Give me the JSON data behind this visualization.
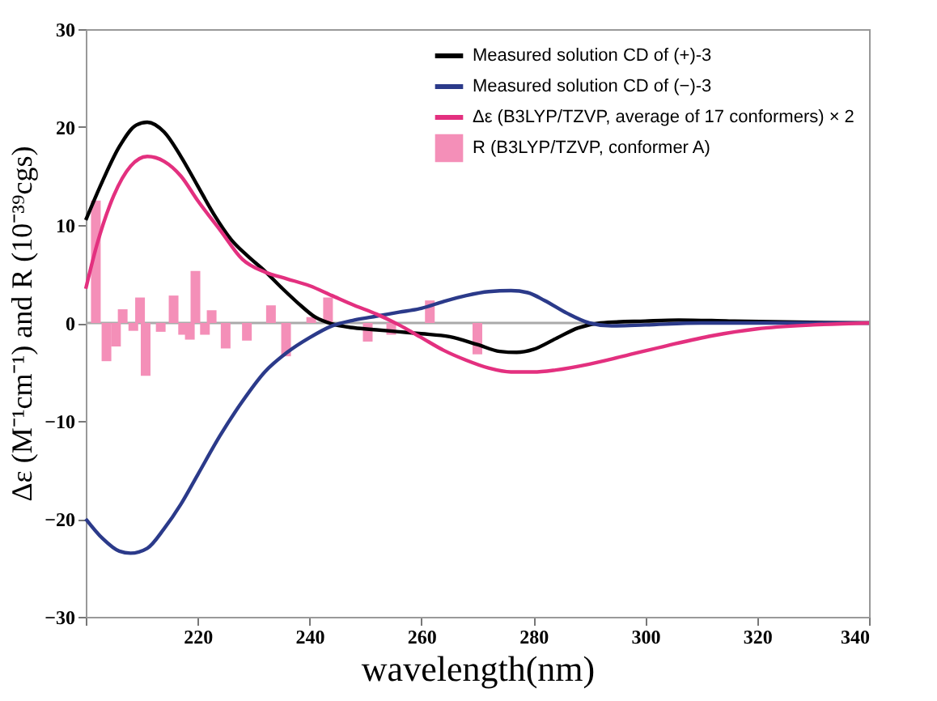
{
  "chart_data": {
    "type": "line",
    "xlabel": "wavelength(nm)",
    "ylabel": "Δε (M⁻¹cm⁻¹) and R (10⁻³⁹cgs)",
    "xlim": [
      200,
      340
    ],
    "ylim": [
      -30,
      30
    ],
    "xticks": [
      {
        "value": 200,
        "label": null
      },
      220,
      240,
      260,
      280,
      300,
      320,
      340
    ],
    "yticks": [
      -30,
      -20,
      -10,
      0,
      10,
      20,
      30
    ],
    "grid": false,
    "legend": "top right",
    "ref_lines": [
      {
        "axis": "y",
        "value": 0,
        "color": "#aaaaaa"
      }
    ],
    "series": [
      {
        "name": "Measured solution CD of (+)-3",
        "color": "#000000",
        "x": [
          200,
          203,
          206,
          209,
          211,
          214,
          217,
          220,
          223,
          226,
          229,
          232,
          235,
          238,
          241,
          244,
          248,
          252,
          256,
          260,
          265,
          270,
          274,
          277,
          280,
          284,
          288,
          292,
          300,
          306,
          315,
          325,
          340
        ],
        "values": [
          10.5,
          14.5,
          18,
          20.2,
          20.5,
          19.5,
          17,
          14,
          11,
          8.5,
          6.8,
          5.3,
          3.6,
          2,
          0.6,
          -0.1,
          -0.5,
          -0.7,
          -0.9,
          -1.1,
          -1.4,
          -2.2,
          -2.9,
          -3,
          -2.7,
          -1.6,
          -0.5,
          0,
          0.2,
          0.3,
          0.2,
          0.1,
          0
        ]
      },
      {
        "name": "Measured solution CD of (−)-3",
        "color": "#2b3a8a",
        "x": [
          200,
          203,
          206,
          208,
          211,
          214,
          217,
          220,
          224,
          228,
          232,
          236,
          240,
          244,
          248,
          252,
          256,
          260,
          264,
          268,
          272,
          276,
          279,
          282,
          286,
          290,
          294,
          300,
          310,
          340
        ],
        "values": [
          -20,
          -22,
          -23.3,
          -23.5,
          -23,
          -21,
          -18.5,
          -15.5,
          -11.5,
          -8,
          -5,
          -3,
          -1.5,
          -0.3,
          0.3,
          0.7,
          1.1,
          1.5,
          2.2,
          2.8,
          3.2,
          3.3,
          3.1,
          2.3,
          1,
          0,
          -0.3,
          -0.2,
          0,
          0
        ]
      },
      {
        "name": "Δε (B3LYP/TZVP, average of 17 conformers) × 2",
        "color": "#e3307f",
        "x": [
          200,
          202,
          205,
          208,
          211,
          214,
          217,
          220,
          224,
          228,
          232,
          236,
          240,
          244,
          248,
          252,
          256,
          260,
          264,
          268,
          272,
          276,
          280,
          284,
          290,
          296,
          304,
          312,
          320,
          330,
          340
        ],
        "values": [
          3.5,
          8,
          13,
          16,
          17,
          16.5,
          15,
          12.5,
          9.5,
          6.5,
          5.2,
          4.5,
          3.8,
          2.8,
          1.8,
          0.9,
          -0.2,
          -1.5,
          -2.8,
          -3.8,
          -4.6,
          -5,
          -5,
          -4.8,
          -4.2,
          -3.4,
          -2.3,
          -1.3,
          -0.6,
          -0.2,
          0
        ]
      },
      {
        "name": "R (B3LYP/TZVP, conformer A)",
        "type": "bar",
        "color": "#f48fb8",
        "x": [
          201.8,
          203.7,
          205.4,
          206.6,
          208.5,
          209.7,
          210.7,
          213.4,
          215.7,
          217.4,
          218.6,
          219.6,
          221.3,
          222.5,
          225,
          228.8,
          233.1,
          235.8,
          240.3,
          243.3,
          246.2,
          250.4,
          254.6,
          261.5,
          270
        ],
        "values": [
          12.5,
          -3.9,
          -2.4,
          1.4,
          -0.8,
          2.6,
          -5.4,
          -0.9,
          2.8,
          -1.2,
          -1.7,
          5.3,
          -1.2,
          1.3,
          -2.6,
          -1.8,
          1.8,
          -3.4,
          0.6,
          2.6,
          null,
          -1.9,
          -1.2,
          2.3,
          -3.2
        ]
      }
    ]
  }
}
